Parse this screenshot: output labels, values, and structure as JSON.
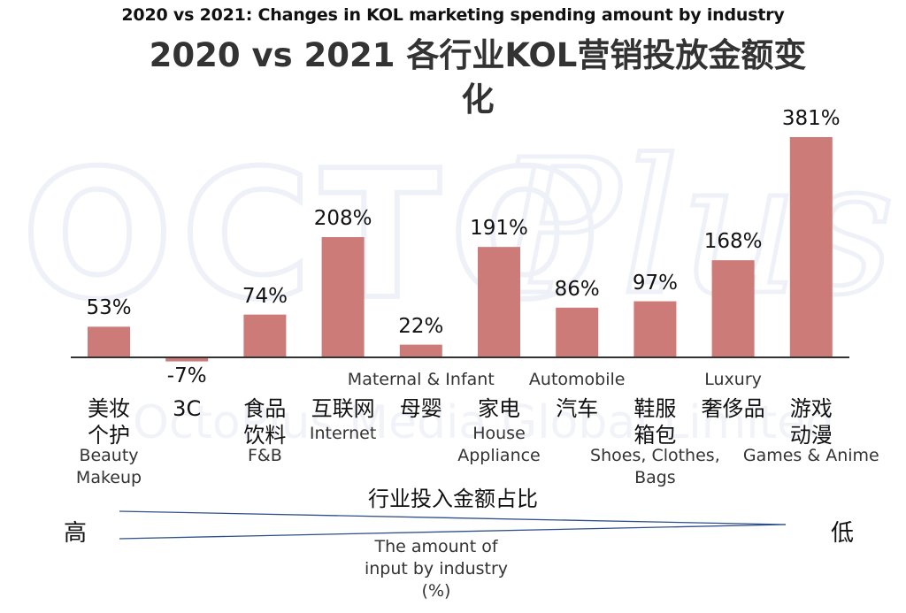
{
  "title_en": "2020 vs 2021: Changes in KOL marketing spending amount by industry",
  "title_zh": "2020 vs 2021 各行业KOL营销投放金额变化",
  "watermark": {
    "main": "OCTO",
    "script": "Plus",
    "sub": "OctoPlus Media Global Limited"
  },
  "colors": {
    "bar": "#cd7b79",
    "axis": "#333333",
    "text": "#111111"
  },
  "chart_data": {
    "type": "bar",
    "unit": "%",
    "categories": [
      {
        "zh": "美妆\n个护",
        "en": "Beauty\nMakeup",
        "en_position": "below"
      },
      {
        "zh": "3C",
        "en": "",
        "en_position": "below"
      },
      {
        "zh": "食品\n饮料",
        "en": "F&B",
        "en_position": "below"
      },
      {
        "zh": "互联网",
        "en": "Internet",
        "en_position": "below"
      },
      {
        "zh": "母婴",
        "en": "Maternal & Infant",
        "en_position": "above"
      },
      {
        "zh": "家电",
        "en": "House\nAppliance",
        "en_position": "below"
      },
      {
        "zh": "汽车",
        "en": "Automobile",
        "en_position": "above"
      },
      {
        "zh": "鞋服\n箱包",
        "en": "Shoes, Clothes,\nBags",
        "en_position": "below"
      },
      {
        "zh": "奢侈品",
        "en": "Luxury",
        "en_position": "above"
      },
      {
        "zh": "游戏\n动漫",
        "en": "Games & Anime",
        "en_position": "below"
      }
    ],
    "values": [
      53,
      -7,
      74,
      208,
      22,
      191,
      86,
      97,
      168,
      381
    ],
    "value_labels": [
      "53%",
      "-7%",
      "74%",
      "208%",
      "22%",
      "191%",
      "86%",
      "97%",
      "168%",
      "381%"
    ],
    "x_axis_title_zh": "行业投入金额占比",
    "x_axis_title_en": "The amount of\ninput by industry\n(%)",
    "x_axis_high": "高",
    "x_axis_low": "低",
    "ylim": [
      -10,
      381
    ]
  }
}
